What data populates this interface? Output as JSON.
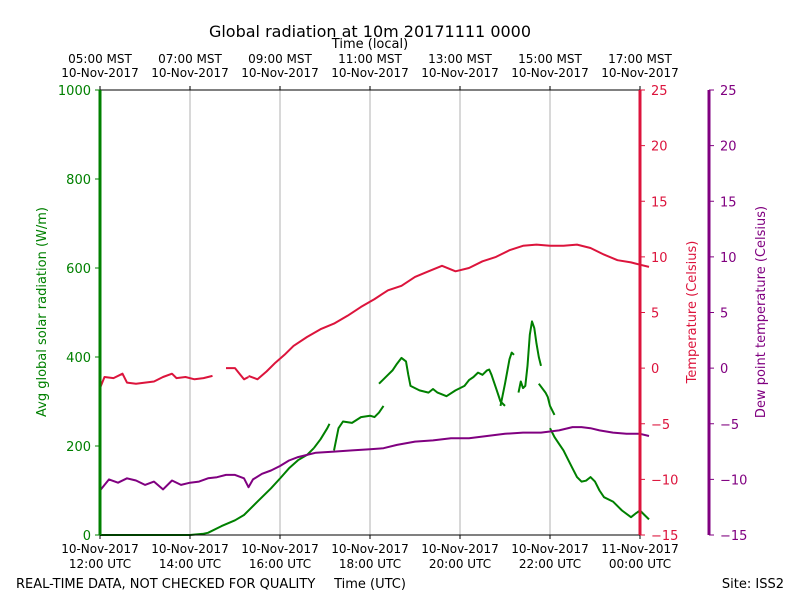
{
  "chart_data": {
    "type": "line",
    "title": "Global radiation at 10m 20171111 0000",
    "top_axis_label": "Time (local)",
    "xlabel": "Time (UTC)",
    "footer_left": "REAL-TIME DATA, NOT CHECKED FOR QUALITY",
    "footer_right": "Site: ISS2",
    "colors": {
      "radiation": "#008000",
      "temperature": "#dc143c",
      "dewpoint": "#800080",
      "grid": "#b0b0b0"
    },
    "x_range_utc_hours": [
      12,
      24
    ],
    "bottom_ticks": [
      {
        "hour": 12,
        "line1": "10-Nov-2017",
        "line2": "12:00 UTC"
      },
      {
        "hour": 14,
        "line1": "10-Nov-2017",
        "line2": "14:00 UTC"
      },
      {
        "hour": 16,
        "line1": "10-Nov-2017",
        "line2": "16:00 UTC"
      },
      {
        "hour": 18,
        "line1": "10-Nov-2017",
        "line2": "18:00 UTC"
      },
      {
        "hour": 20,
        "line1": "10-Nov-2017",
        "line2": "20:00 UTC"
      },
      {
        "hour": 22,
        "line1": "10-Nov-2017",
        "line2": "22:00 UTC"
      },
      {
        "hour": 24,
        "line1": "11-Nov-2017",
        "line2": "00:00 UTC"
      }
    ],
    "top_ticks": [
      {
        "hour": 12,
        "line1": "05:00 MST",
        "line2": "10-Nov-2017"
      },
      {
        "hour": 14,
        "line1": "07:00 MST",
        "line2": "10-Nov-2017"
      },
      {
        "hour": 16,
        "line1": "09:00 MST",
        "line2": "10-Nov-2017"
      },
      {
        "hour": 18,
        "line1": "11:00 MST",
        "line2": "10-Nov-2017"
      },
      {
        "hour": 20,
        "line1": "13:00 MST",
        "line2": "10-Nov-2017"
      },
      {
        "hour": 22,
        "line1": "15:00 MST",
        "line2": "10-Nov-2017"
      },
      {
        "hour": 24,
        "line1": "17:00 MST",
        "line2": "10-Nov-2017"
      }
    ],
    "left_axis": {
      "label": "Avg global solar radiation (W/m)",
      "ylim": [
        0,
        1000
      ],
      "ticks": [
        0,
        200,
        400,
        600,
        800,
        1000
      ]
    },
    "right_axis": {
      "label": "Temperature (Celsius)",
      "ylim": [
        -15,
        25
      ],
      "ticks": [
        -15,
        -10,
        -5,
        0,
        5,
        10,
        15,
        20,
        25
      ],
      "tick_labels": [
        "−15",
        "−10",
        "−5",
        "0",
        "5",
        "10",
        "15",
        "20",
        "25"
      ]
    },
    "far_right_axis": {
      "label": "Dew point temperature (Celsius)",
      "ylim": [
        -15,
        25
      ],
      "ticks": [
        -15,
        -10,
        -5,
        0,
        5,
        10,
        15,
        20,
        25
      ],
      "tick_labels": [
        "−15",
        "−10",
        "−5",
        "0",
        "5",
        "10",
        "15",
        "20",
        "25"
      ]
    },
    "series": [
      {
        "name": "Avg global solar radiation",
        "axis": "left",
        "segments": [
          [
            [
              12,
              0
            ],
            [
              13,
              0
            ],
            [
              14,
              0
            ],
            [
              14.3,
              3
            ],
            [
              14.4,
              5
            ],
            [
              14.7,
              20
            ],
            [
              15.0,
              33
            ],
            [
              15.2,
              45
            ],
            [
              15.5,
              75
            ],
            [
              15.8,
              105
            ],
            [
              16.0,
              127
            ],
            [
              16.2,
              150
            ],
            [
              16.4,
              168
            ],
            [
              16.6,
              180
            ],
            [
              16.75,
              195
            ]
          ],
          [
            [
              16.75,
              195
            ],
            [
              16.9,
              215
            ],
            [
              17.05,
              240
            ],
            [
              17.1,
              250
            ]
          ],
          [
            [
              17.2,
              190
            ],
            [
              17.3,
              240
            ],
            [
              17.4,
              255
            ],
            [
              17.6,
              252
            ],
            [
              17.8,
              265
            ],
            [
              18.0,
              268
            ],
            [
              18.1,
              265
            ],
            [
              18.2,
              275
            ],
            [
              18.3,
              290
            ]
          ],
          [
            [
              18.2,
              340
            ],
            [
              18.4,
              360
            ],
            [
              18.5,
              370
            ],
            [
              18.6,
              385
            ],
            [
              18.7,
              398
            ],
            [
              18.8,
              390
            ],
            [
              18.85,
              360
            ],
            [
              18.9,
              335
            ],
            [
              19.0,
              330
            ],
            [
              19.1,
              325
            ],
            [
              19.3,
              320
            ],
            [
              19.4,
              328
            ],
            [
              19.5,
              320
            ],
            [
              19.7,
              312
            ],
            [
              19.9,
              325
            ],
            [
              20.1,
              335
            ],
            [
              20.2,
              348
            ],
            [
              20.3,
              355
            ],
            [
              20.4,
              365
            ],
            [
              20.5,
              360
            ],
            [
              20.6,
              370
            ],
            [
              20.65,
              372
            ],
            [
              20.7,
              360
            ],
            [
              20.8,
              330
            ],
            [
              20.9,
              300
            ],
            [
              21.0,
              290
            ]
          ],
          [
            [
              20.9,
              290
            ],
            [
              21.0,
              340
            ],
            [
              21.1,
              395
            ],
            [
              21.15,
              410
            ],
            [
              21.2,
              405
            ]
          ],
          [
            [
              21.3,
              320
            ],
            [
              21.35,
              345
            ],
            [
              21.4,
              330
            ],
            [
              21.45,
              335
            ],
            [
              21.5,
              380
            ],
            [
              21.55,
              450
            ],
            [
              21.6,
              480
            ],
            [
              21.65,
              465
            ],
            [
              21.7,
              430
            ],
            [
              21.75,
              400
            ],
            [
              21.8,
              380
            ]
          ],
          [
            [
              21.75,
              340
            ],
            [
              21.9,
              320
            ],
            [
              21.95,
              310
            ],
            [
              22.0,
              290
            ],
            [
              22.1,
              270
            ]
          ],
          [
            [
              22.0,
              240
            ],
            [
              22.1,
              220
            ],
            [
              22.2,
              205
            ],
            [
              22.3,
              190
            ],
            [
              22.4,
              170
            ],
            [
              22.5,
              150
            ],
            [
              22.6,
              130
            ],
            [
              22.7,
              120
            ],
            [
              22.8,
              122
            ],
            [
              22.9,
              130
            ],
            [
              23.0,
              120
            ],
            [
              23.1,
              100
            ],
            [
              23.2,
              85
            ],
            [
              23.4,
              75
            ],
            [
              23.6,
              55
            ],
            [
              23.8,
              40
            ],
            [
              23.9,
              48
            ],
            [
              24.0,
              55
            ],
            [
              24.1,
              45
            ],
            [
              24.2,
              35
            ]
          ]
        ]
      },
      {
        "name": "Temperature",
        "axis": "right",
        "segments": [
          [
            [
              12,
              -1.8
            ],
            [
              12.1,
              -0.8
            ],
            [
              12.3,
              -0.9
            ],
            [
              12.5,
              -0.5
            ],
            [
              12.6,
              -1.3
            ],
            [
              12.8,
              -1.4
            ],
            [
              13.0,
              -1.3
            ],
            [
              13.2,
              -1.2
            ],
            [
              13.4,
              -0.8
            ],
            [
              13.6,
              -0.5
            ],
            [
              13.7,
              -0.9
            ],
            [
              13.9,
              -0.8
            ],
            [
              14.1,
              -1.0
            ],
            [
              14.3,
              -0.9
            ],
            [
              14.5,
              -0.7
            ]
          ],
          [
            [
              14.8,
              0.0
            ],
            [
              15.0,
              0.0
            ],
            [
              15.1,
              -0.5
            ],
            [
              15.2,
              -1.0
            ],
            [
              15.3,
              -0.8
            ]
          ],
          [
            [
              15.3,
              -0.7
            ],
            [
              15.5,
              -1.0
            ],
            [
              15.7,
              -0.3
            ],
            [
              15.9,
              0.5
            ],
            [
              16.1,
              1.2
            ],
            [
              16.3,
              2.0
            ],
            [
              16.6,
              2.8
            ],
            [
              16.9,
              3.5
            ],
            [
              17.2,
              4.0
            ],
            [
              17.5,
              4.7
            ],
            [
              17.8,
              5.5
            ],
            [
              18.1,
              6.2
            ],
            [
              18.4,
              7.0
            ],
            [
              18.7,
              7.4
            ],
            [
              19.0,
              8.2
            ],
            [
              19.3,
              8.7
            ],
            [
              19.6,
              9.2
            ],
            [
              19.9,
              8.7
            ],
            [
              20.2,
              9.0
            ],
            [
              20.5,
              9.6
            ],
            [
              20.8,
              10.0
            ],
            [
              21.1,
              10.6
            ],
            [
              21.4,
              11.0
            ],
            [
              21.7,
              11.1
            ],
            [
              22.0,
              11.0
            ],
            [
              22.3,
              11.0
            ],
            [
              22.6,
              11.1
            ],
            [
              22.9,
              10.8
            ],
            [
              23.2,
              10.2
            ],
            [
              23.5,
              9.7
            ],
            [
              23.8,
              9.5
            ],
            [
              24.0,
              9.3
            ],
            [
              24.2,
              9.1
            ]
          ]
        ]
      },
      {
        "name": "Dew point temperature",
        "axis": "far_right",
        "segments": [
          [
            [
              12,
              -11.0
            ],
            [
              12.2,
              -10.0
            ],
            [
              12.4,
              -10.3
            ],
            [
              12.6,
              -9.9
            ],
            [
              12.8,
              -10.1
            ],
            [
              13.0,
              -10.5
            ],
            [
              13.2,
              -10.2
            ],
            [
              13.4,
              -10.9
            ],
            [
              13.6,
              -10.1
            ],
            [
              13.8,
              -10.5
            ],
            [
              14.0,
              -10.3
            ],
            [
              14.2,
              -10.2
            ],
            [
              14.4,
              -9.9
            ],
            [
              14.6,
              -9.8
            ],
            [
              14.8,
              -9.6
            ],
            [
              15.0,
              -9.6
            ],
            [
              15.2,
              -9.9
            ],
            [
              15.3,
              -10.7
            ],
            [
              15.4,
              -10.0
            ],
            [
              15.6,
              -9.5
            ],
            [
              15.8,
              -9.2
            ],
            [
              16.0,
              -8.8
            ],
            [
              16.2,
              -8.3
            ],
            [
              16.4,
              -8.0
            ],
            [
              16.6,
              -7.8
            ],
            [
              16.8,
              -7.6
            ],
            [
              17.2,
              -7.5
            ],
            [
              17.6,
              -7.4
            ],
            [
              18.0,
              -7.3
            ],
            [
              18.3,
              -7.2
            ],
            [
              18.6,
              -6.9
            ],
            [
              19.0,
              -6.6
            ],
            [
              19.4,
              -6.5
            ],
            [
              19.8,
              -6.3
            ],
            [
              20.2,
              -6.3
            ],
            [
              20.6,
              -6.1
            ],
            [
              21.0,
              -5.9
            ],
            [
              21.4,
              -5.8
            ],
            [
              21.8,
              -5.8
            ],
            [
              22.2,
              -5.6
            ],
            [
              22.5,
              -5.3
            ],
            [
              22.7,
              -5.3
            ],
            [
              22.9,
              -5.4
            ],
            [
              23.1,
              -5.6
            ],
            [
              23.4,
              -5.8
            ],
            [
              23.7,
              -5.9
            ],
            [
              24.0,
              -5.9
            ],
            [
              24.2,
              -6.1
            ]
          ]
        ]
      }
    ]
  }
}
